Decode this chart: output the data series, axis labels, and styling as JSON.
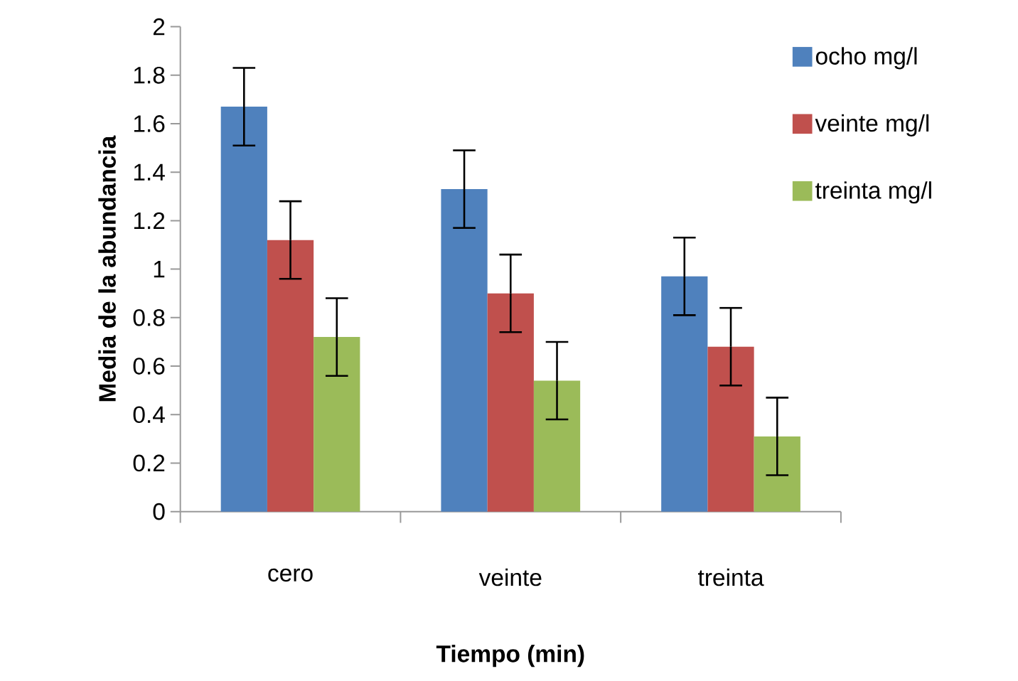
{
  "chart_data": {
    "type": "bar",
    "xlabel": "Tiempo (min)",
    "ylabel": "Media de la abundancia",
    "categories": [
      "cero",
      "veinte",
      "treinta"
    ],
    "series": [
      {
        "name": "ocho mg/l",
        "color": "#4f81bd",
        "values": [
          1.67,
          1.33,
          0.97
        ],
        "errors": [
          0.16,
          0.16,
          0.16
        ]
      },
      {
        "name": "veinte mg/l",
        "color": "#c0504d",
        "values": [
          1.12,
          0.9,
          0.68
        ],
        "errors": [
          0.16,
          0.16,
          0.16
        ]
      },
      {
        "name": "treinta mg/l",
        "color": "#9bbb59",
        "values": [
          0.72,
          0.54,
          0.31
        ],
        "errors": [
          0.16,
          0.16,
          0.16
        ]
      }
    ],
    "ylim": [
      0,
      2
    ],
    "yticks": [
      0,
      0.2,
      0.4,
      0.6,
      0.8,
      1,
      1.2,
      1.4,
      1.6,
      1.8,
      2
    ],
    "grid": false,
    "legend": "right"
  }
}
